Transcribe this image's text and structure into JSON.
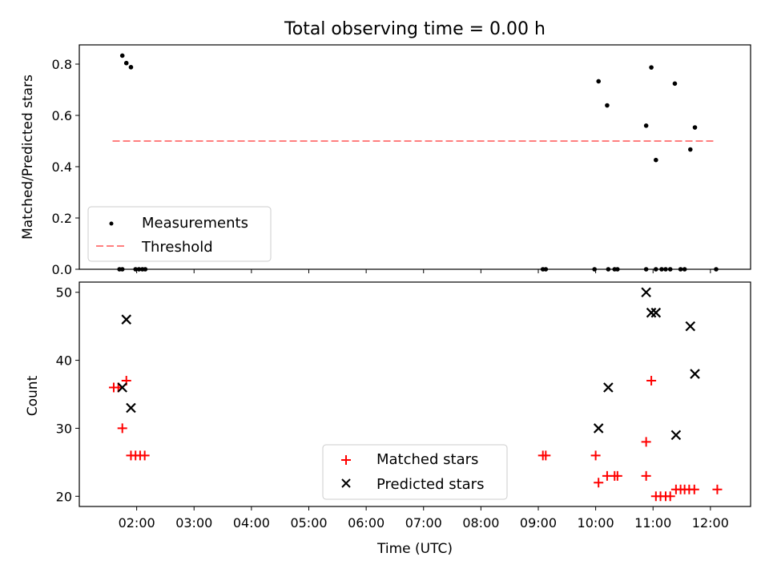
{
  "chart_data": {
    "title": "Total observing time = 0.00 h",
    "xlabel": "Time (UTC)",
    "xlim_hours": [
      1.0,
      12.7
    ],
    "x_ticks": [
      {
        "hour": 2,
        "label": "02:00"
      },
      {
        "hour": 3,
        "label": "03:00"
      },
      {
        "hour": 4,
        "label": "04:00"
      },
      {
        "hour": 5,
        "label": "05:00"
      },
      {
        "hour": 6,
        "label": "06:00"
      },
      {
        "hour": 7,
        "label": "07:00"
      },
      {
        "hour": 8,
        "label": "08:00"
      },
      {
        "hour": 9,
        "label": "09:00"
      },
      {
        "hour": 10,
        "label": "10:00"
      },
      {
        "hour": 11,
        "label": "11:00"
      },
      {
        "hour": 12,
        "label": "12:00"
      }
    ],
    "top": {
      "type": "scatter",
      "ylabel": "Matched/Predicted stars",
      "ylim": [
        0.0,
        0.875
      ],
      "y_ticks": [
        "0.0",
        "0.2",
        "0.4",
        "0.6",
        "0.8"
      ],
      "y_tick_values": [
        0.0,
        0.2,
        0.4,
        0.6,
        0.8
      ],
      "legend": {
        "placement": "lower-left",
        "entries": [
          "Measurements",
          "Threshold"
        ]
      },
      "threshold": {
        "name": "Threshold",
        "value": 0.5,
        "x_range": [
          1.58,
          12.05
        ],
        "color": "#ff7f7f"
      },
      "measurements": {
        "name": "Measurements",
        "color": "#000000",
        "points": [
          [
            1.7,
            0.0
          ],
          [
            1.75,
            0.0
          ],
          [
            1.75,
            0.833
          ],
          [
            1.82,
            0.804
          ],
          [
            1.9,
            0.788
          ],
          [
            1.98,
            0.0
          ],
          [
            2.04,
            0.0
          ],
          [
            2.1,
            0.0
          ],
          [
            2.15,
            0.0
          ],
          [
            9.08,
            0.0
          ],
          [
            9.13,
            0.0
          ],
          [
            9.98,
            0.0
          ],
          [
            10.05,
            0.733
          ],
          [
            10.2,
            0.639
          ],
          [
            10.22,
            0.0
          ],
          [
            10.33,
            0.0
          ],
          [
            10.38,
            0.0
          ],
          [
            10.88,
            0.56
          ],
          [
            10.88,
            0.0
          ],
          [
            10.97,
            0.787
          ],
          [
            11.05,
            0.0
          ],
          [
            11.05,
            0.426
          ],
          [
            11.15,
            0.0
          ],
          [
            11.22,
            0.0
          ],
          [
            11.3,
            0.0
          ],
          [
            11.38,
            0.724
          ],
          [
            11.48,
            0.0
          ],
          [
            11.55,
            0.0
          ],
          [
            11.65,
            0.467
          ],
          [
            11.73,
            0.553
          ],
          [
            12.1,
            0.0
          ]
        ]
      }
    },
    "bottom": {
      "type": "scatter",
      "ylabel": "Count",
      "ylim": [
        18.5,
        51.5
      ],
      "y_ticks": [
        "20",
        "30",
        "40",
        "50"
      ],
      "y_tick_values": [
        20,
        30,
        40,
        50
      ],
      "legend": {
        "placement": "lower-center",
        "entries": [
          "Matched stars",
          "Predicted stars"
        ]
      },
      "series": [
        {
          "name": "Matched stars",
          "marker": "plus",
          "color": "#ff0000",
          "points": [
            [
              1.6,
              36
            ],
            [
              1.68,
              36
            ],
            [
              1.75,
              30
            ],
            [
              1.82,
              37
            ],
            [
              1.9,
              26
            ],
            [
              1.98,
              26
            ],
            [
              2.06,
              26
            ],
            [
              2.14,
              26
            ],
            [
              9.08,
              26
            ],
            [
              9.13,
              26
            ],
            [
              10.0,
              26
            ],
            [
              10.05,
              22
            ],
            [
              10.2,
              23
            ],
            [
              10.33,
              23
            ],
            [
              10.38,
              23
            ],
            [
              10.88,
              28
            ],
            [
              10.88,
              23
            ],
            [
              10.97,
              37
            ],
            [
              11.05,
              20
            ],
            [
              11.13,
              20
            ],
            [
              11.22,
              20
            ],
            [
              11.3,
              20
            ],
            [
              11.4,
              21
            ],
            [
              11.48,
              21
            ],
            [
              11.55,
              21
            ],
            [
              11.63,
              21
            ],
            [
              11.72,
              21
            ],
            [
              12.12,
              21
            ]
          ]
        },
        {
          "name": "Predicted stars",
          "marker": "x",
          "color": "#000000",
          "points": [
            [
              1.75,
              36
            ],
            [
              1.82,
              46
            ],
            [
              1.9,
              33
            ],
            [
              10.05,
              30
            ],
            [
              10.22,
              36
            ],
            [
              10.88,
              50
            ],
            [
              10.97,
              47
            ],
            [
              11.05,
              47
            ],
            [
              11.4,
              29
            ],
            [
              11.65,
              45
            ],
            [
              11.73,
              38
            ]
          ]
        }
      ]
    }
  }
}
